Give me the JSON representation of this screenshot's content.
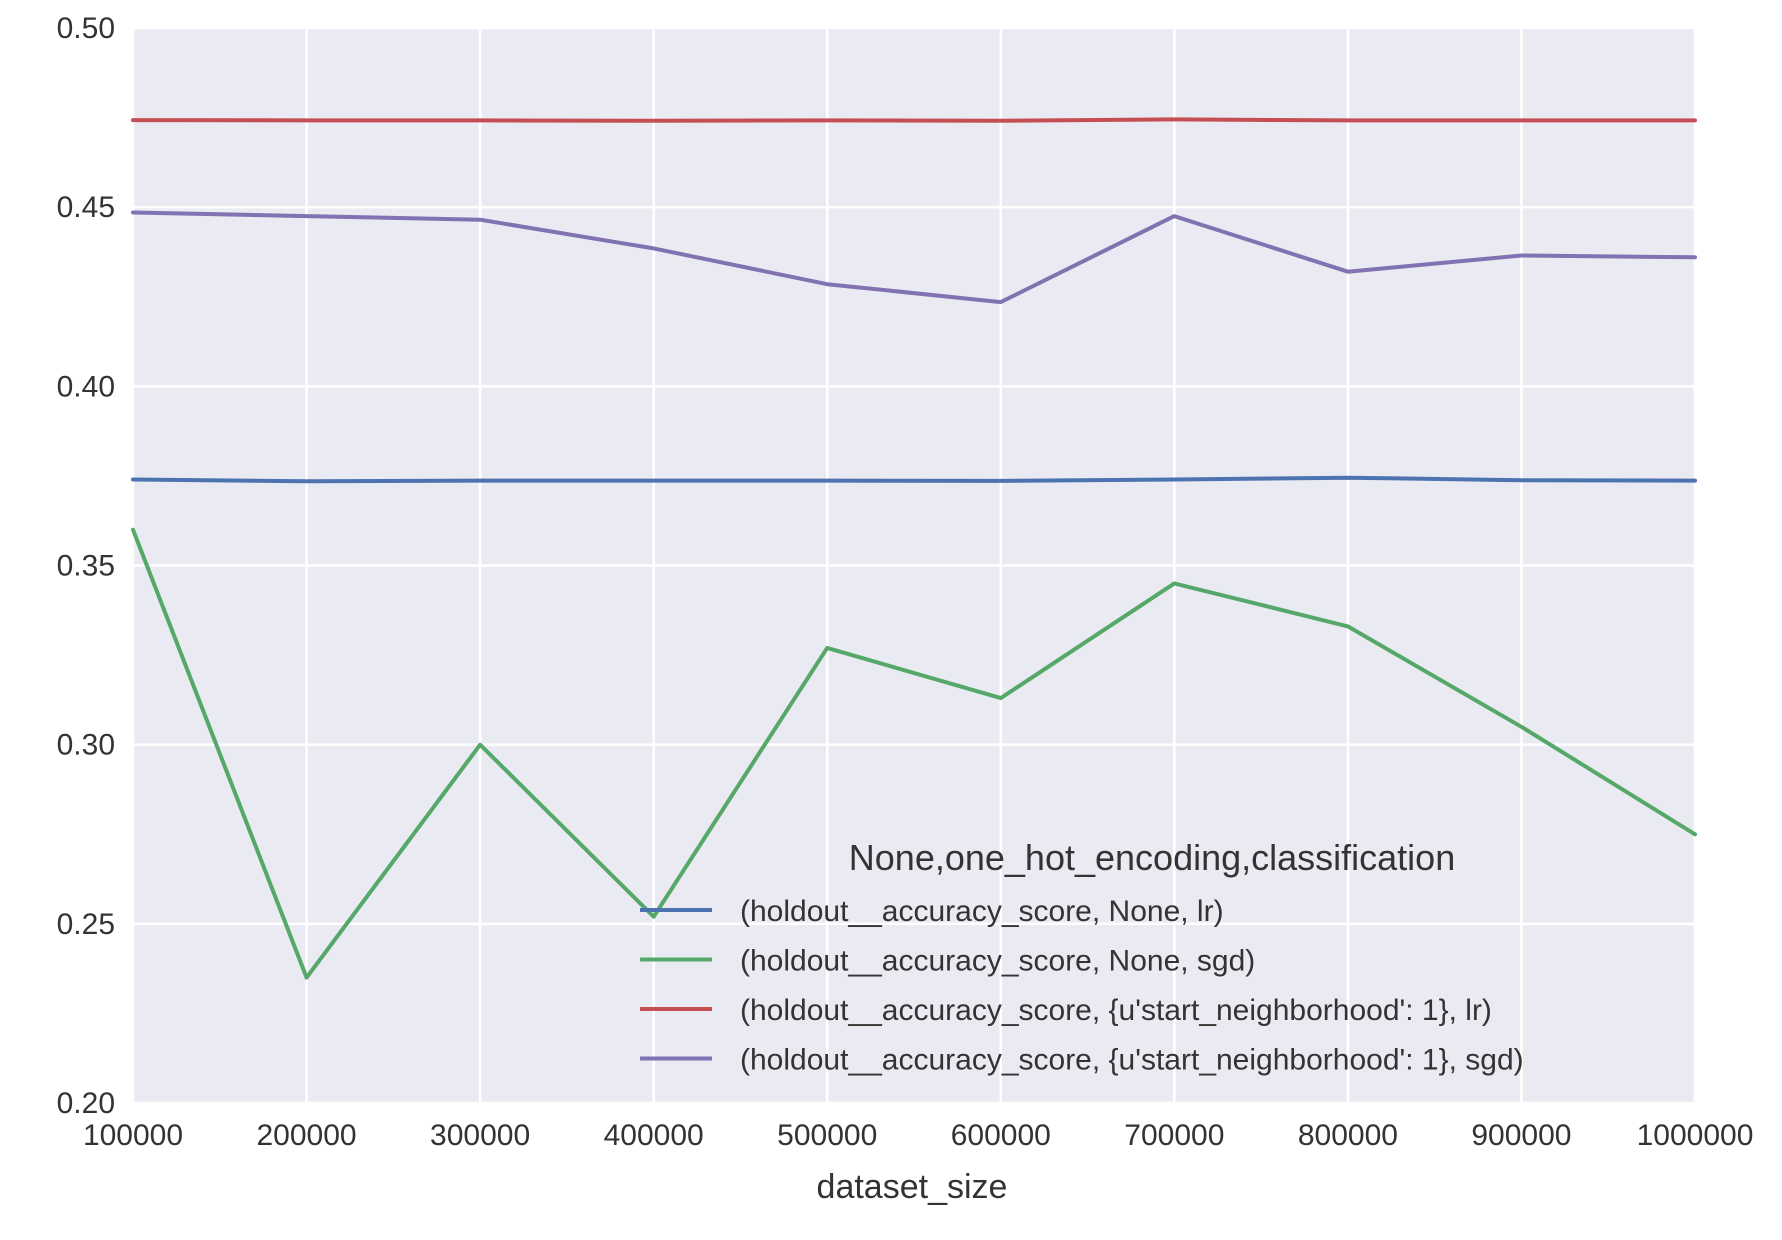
{
  "chart_data": {
    "type": "line",
    "xlabel": "dataset_size",
    "ylabel": "",
    "x": [
      100000,
      200000,
      300000,
      400000,
      500000,
      600000,
      700000,
      800000,
      900000,
      1000000
    ],
    "x_tick_labels": [
      "100000",
      "200000",
      "300000",
      "400000",
      "500000",
      "600000",
      "700000",
      "800000",
      "900000",
      "1000000"
    ],
    "xlim": [
      100000,
      1000000
    ],
    "ylim": [
      0.2,
      0.5
    ],
    "y_ticks": [
      0.2,
      0.25,
      0.3,
      0.35,
      0.4,
      0.45,
      0.5
    ],
    "y_tick_labels": [
      "0.20",
      "0.25",
      "0.30",
      "0.35",
      "0.40",
      "0.45",
      "0.50"
    ],
    "grid": true,
    "background": "#eaeaf2",
    "legend": {
      "title": "None,one_hot_encoding,classification",
      "placement": "lower-right"
    },
    "series": [
      {
        "name": "(holdout__accuracy_score, None, lr)",
        "color": "#4c72b0",
        "values": [
          0.374,
          0.3735,
          0.3737,
          0.3737,
          0.3737,
          0.3736,
          0.374,
          0.3745,
          0.3738,
          0.3737
        ]
      },
      {
        "name": "(holdout__accuracy_score, None, sgd)",
        "color": "#55a868",
        "values": [
          0.36,
          0.235,
          0.3,
          0.252,
          0.327,
          0.313,
          0.345,
          0.333,
          0.305,
          0.275
        ]
      },
      {
        "name": "(holdout__accuracy_score, {u'start_neighborhood': 1}, lr)",
        "color": "#c44e52",
        "values": [
          0.4743,
          0.4742,
          0.4742,
          0.4741,
          0.4742,
          0.4741,
          0.4745,
          0.4742,
          0.4742,
          0.4742
        ]
      },
      {
        "name": "(holdout__accuracy_score, {u'start_neighborhood': 1}, sgd)",
        "color": "#8172b2",
        "values": [
          0.4485,
          0.4475,
          0.4465,
          0.4385,
          0.4285,
          0.4235,
          0.4475,
          0.432,
          0.4365,
          0.436
        ]
      }
    ]
  }
}
